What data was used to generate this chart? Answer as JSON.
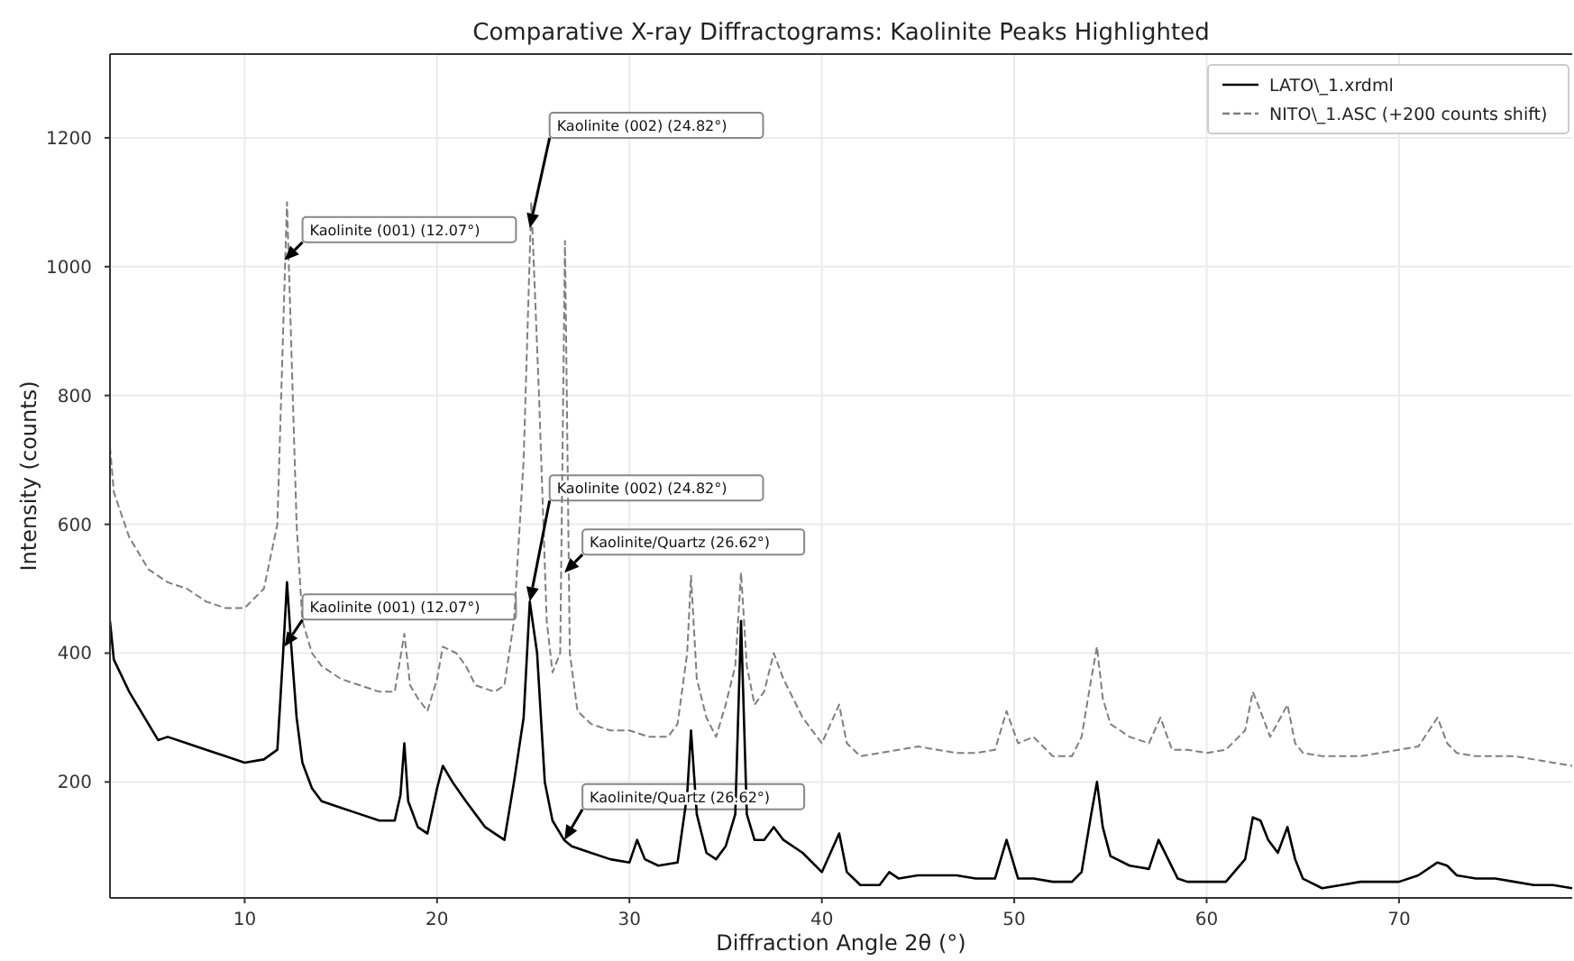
{
  "chart_data": {
    "type": "line",
    "title": "Comparative X-ray Diffractograms: Kaolinite Peaks Highlighted",
    "xlabel": "Diffraction Angle 2θ (°)",
    "ylabel": "Intensity (counts)",
    "xlim": [
      3,
      79
    ],
    "xticks": [
      10,
      20,
      30,
      40,
      50,
      60,
      70
    ],
    "ylim": [
      20,
      1330
    ],
    "yticks": [
      200,
      400,
      600,
      800,
      1000,
      1200
    ],
    "grid": true,
    "legend": "top right",
    "series": [
      {
        "name": "LATO\\_1.xrdml",
        "color": "#000000",
        "line_style": "solid",
        "x": [
          3,
          3.2,
          4,
          5,
          5.5,
          6,
          7,
          8,
          9,
          10,
          11,
          11.7,
          12.0,
          12.2,
          12.4,
          12.7,
          13,
          13.5,
          14,
          15,
          16,
          17,
          17.8,
          18.1,
          18.3,
          18.5,
          19,
          19.5,
          20,
          20.3,
          20.8,
          21.5,
          22,
          22.5,
          23,
          23.5,
          24,
          24.5,
          24.82,
          25.2,
          25.6,
          26,
          26.6,
          27,
          28,
          29,
          30,
          30.4,
          30.8,
          31.5,
          32.5,
          33.0,
          33.2,
          33.5,
          34,
          34.5,
          35,
          35.5,
          35.8,
          36.1,
          36.5,
          37,
          37.5,
          38,
          39,
          40,
          40.9,
          41.3,
          42,
          43,
          43.5,
          44,
          45,
          46,
          47,
          48,
          49,
          49.6,
          50.2,
          51,
          52,
          53,
          53.5,
          54.0,
          54.3,
          54.6,
          55,
          56,
          57,
          57.5,
          58,
          58.5,
          59,
          60,
          61,
          62,
          62.4,
          62.8,
          63.2,
          63.7,
          64.2,
          64.6,
          65,
          66,
          67,
          68,
          69,
          70,
          71,
          72,
          72.5,
          73,
          74,
          75,
          76,
          77,
          78,
          79
        ],
        "values": [
          450,
          390,
          340,
          290,
          265,
          270,
          260,
          250,
          240,
          230,
          235,
          250,
          400,
          510,
          420,
          300,
          230,
          190,
          170,
          160,
          150,
          140,
          140,
          180,
          260,
          170,
          130,
          120,
          190,
          225,
          200,
          170,
          150,
          130,
          120,
          110,
          200,
          300,
          480,
          400,
          200,
          140,
          110,
          100,
          90,
          80,
          75,
          110,
          80,
          70,
          75,
          180,
          280,
          150,
          90,
          80,
          100,
          150,
          450,
          150,
          110,
          110,
          130,
          110,
          90,
          60,
          120,
          60,
          40,
          40,
          60,
          50,
          55,
          55,
          55,
          50,
          50,
          110,
          50,
          50,
          45,
          45,
          60,
          150,
          200,
          130,
          85,
          70,
          65,
          110,
          80,
          50,
          45,
          45,
          45,
          80,
          145,
          140,
          110,
          90,
          130,
          80,
          50,
          35,
          40,
          45,
          45,
          45,
          55,
          75,
          70,
          55,
          50,
          50,
          45,
          40,
          40,
          35
        ]
      },
      {
        "name": "NITO\\_1.ASC (+200 counts shift)",
        "color": "#7f7f7f",
        "line_style": "dashed",
        "x": [
          3,
          3.2,
          4,
          5,
          6,
          7,
          8,
          9,
          10,
          11,
          11.7,
          12.0,
          12.2,
          12.4,
          12.7,
          13,
          13.5,
          14,
          15,
          16,
          17,
          17.8,
          18.3,
          18.6,
          19,
          19.5,
          20,
          20.3,
          21,
          21.5,
          22,
          23,
          23.5,
          24,
          24.5,
          24.9,
          25.3,
          25.7,
          26,
          26.4,
          26.65,
          26.9,
          27.3,
          28,
          29,
          30,
          31,
          32,
          32.5,
          33,
          33.2,
          33.5,
          34,
          34.5,
          35,
          35.5,
          35.8,
          36.1,
          36.5,
          37,
          37.5,
          38,
          39,
          40,
          40.9,
          41.3,
          42,
          43,
          44,
          45,
          46,
          47,
          48,
          49,
          49.6,
          50.2,
          51,
          52,
          53,
          53.5,
          54.0,
          54.3,
          54.6,
          55,
          56,
          57,
          57.6,
          58.2,
          59,
          60,
          61,
          62,
          62.4,
          62.8,
          63.3,
          64.2,
          64.6,
          65,
          66,
          67,
          68,
          69,
          70,
          71,
          72,
          72.5,
          73,
          74,
          75,
          76,
          77,
          78,
          79
        ],
        "values": [
          720,
          650,
          580,
          530,
          510,
          500,
          480,
          470,
          470,
          500,
          600,
          900,
          1100,
          900,
          600,
          450,
          400,
          380,
          360,
          350,
          340,
          340,
          430,
          350,
          330,
          310,
          360,
          410,
          400,
          380,
          350,
          340,
          350,
          450,
          700,
          1100,
          800,
          450,
          370,
          400,
          1040,
          400,
          310,
          290,
          280,
          280,
          270,
          270,
          290,
          400,
          520,
          360,
          300,
          270,
          320,
          380,
          525,
          380,
          320,
          340,
          400,
          360,
          300,
          260,
          320,
          260,
          240,
          245,
          250,
          255,
          250,
          245,
          245,
          250,
          310,
          260,
          270,
          240,
          240,
          270,
          360,
          410,
          330,
          290,
          270,
          260,
          300,
          250,
          250,
          245,
          250,
          280,
          340,
          310,
          270,
          320,
          260,
          245,
          240,
          240,
          240,
          245,
          250,
          255,
          300,
          260,
          245,
          240,
          240,
          240,
          235,
          230,
          225
        ]
      }
    ],
    "annotations": [
      {
        "text": "Kaolinite (001) (12.07°)",
        "x": 12.07,
        "y": 1010
      },
      {
        "text": "Kaolinite (002) (24.82°)",
        "x": 24.82,
        "y": 1060
      },
      {
        "text": "Kaolinite (001) (12.07°)",
        "x": 12.07,
        "y": 410
      },
      {
        "text": "Kaolinite (002) (24.82°)",
        "x": 24.82,
        "y": 480
      },
      {
        "text": "Kaolinite/Quartz (26.62°)",
        "x": 26.62,
        "y": 525
      },
      {
        "text": "Kaolinite/Quartz (26.62°)",
        "x": 26.62,
        "y": 110
      }
    ]
  }
}
